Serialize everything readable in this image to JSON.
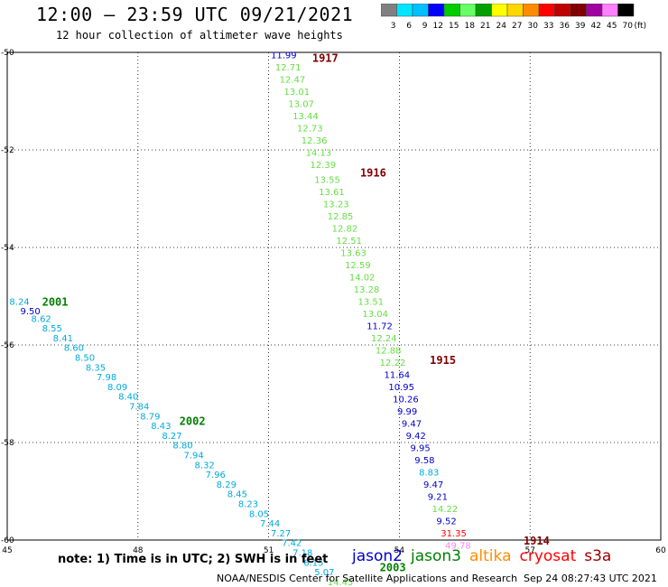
{
  "header": {
    "title": "12:00 – 23:59 UTC 09/21/2021",
    "subtitle": "12 hour collection of altimeter wave heights"
  },
  "color_scale": {
    "labels": [
      "3",
      "6",
      "9",
      "12",
      "15",
      "18",
      "21",
      "24",
      "27",
      "30",
      "33",
      "36",
      "39",
      "42",
      "45",
      "70"
    ],
    "unit": "(ft)",
    "colors": [
      "#808080",
      "#00e5ff",
      "#00bfff",
      "#0000ff",
      "#00cc00",
      "#66ff66",
      "#00a000",
      "#ffff00",
      "#ffd700",
      "#ff8c00",
      "#ff0000",
      "#c00000",
      "#800000",
      "#a000a0",
      "#ff80ff",
      "#000000"
    ]
  },
  "chart_data": {
    "type": "scatter",
    "xlim": [
      45,
      60
    ],
    "ylim": [
      -60,
      -50
    ],
    "x_ticks": [
      "45",
      "48",
      "51",
      "54",
      "57",
      "60"
    ],
    "y_ticks": [
      "-50",
      "-52",
      "-54",
      "-56",
      "-58",
      "-60"
    ],
    "grid": true,
    "series": [
      {
        "name": "jason2",
        "color": "#0000cc"
      },
      {
        "name": "jason3",
        "color": "#008000"
      },
      {
        "name": "altika",
        "color": "#ff8c00"
      },
      {
        "name": "cryosat",
        "color": "#ff0000"
      },
      {
        "name": "s3a",
        "color": "#a00000"
      }
    ],
    "points": [
      {
        "x": 51.05,
        "y": -50.05,
        "value": "11.99",
        "color": "#0000cc"
      },
      {
        "x": 51.15,
        "y": -50.3,
        "value": "12.71",
        "color": "#66dd44"
      },
      {
        "x": 51.25,
        "y": -50.55,
        "value": "12.47",
        "color": "#66dd44"
      },
      {
        "x": 51.35,
        "y": -50.8,
        "value": "13.01",
        "color": "#66dd44"
      },
      {
        "x": 51.45,
        "y": -51.05,
        "value": "13.07",
        "color": "#66dd44"
      },
      {
        "x": 51.55,
        "y": -51.3,
        "value": "13.44",
        "color": "#66dd44"
      },
      {
        "x": 51.65,
        "y": -51.55,
        "value": "12.73",
        "color": "#66dd44"
      },
      {
        "x": 51.75,
        "y": -51.8,
        "value": "12.36",
        "color": "#66dd44"
      },
      {
        "x": 51.85,
        "y": -52.05,
        "value": "14.13",
        "color": "#66dd44"
      },
      {
        "x": 51.95,
        "y": -52.3,
        "value": "12.39",
        "color": "#66dd44"
      },
      {
        "x": 52.05,
        "y": -52.6,
        "value": "13.55",
        "color": "#66dd44"
      },
      {
        "x": 52.15,
        "y": -52.85,
        "value": "13.61",
        "color": "#66dd44"
      },
      {
        "x": 52.25,
        "y": -53.1,
        "value": "13.23",
        "color": "#66dd44"
      },
      {
        "x": 52.35,
        "y": -53.35,
        "value": "12.85",
        "color": "#66dd44"
      },
      {
        "x": 52.45,
        "y": -53.6,
        "value": "12.82",
        "color": "#66dd44"
      },
      {
        "x": 52.55,
        "y": -53.85,
        "value": "12.51",
        "color": "#66dd44"
      },
      {
        "x": 52.65,
        "y": -54.1,
        "value": "13.63",
        "color": "#66dd44"
      },
      {
        "x": 52.75,
        "y": -54.35,
        "value": "12.59",
        "color": "#66dd44"
      },
      {
        "x": 52.85,
        "y": -54.6,
        "value": "14.02",
        "color": "#66dd44"
      },
      {
        "x": 52.95,
        "y": -54.85,
        "value": "13.28",
        "color": "#66dd44"
      },
      {
        "x": 53.05,
        "y": -55.1,
        "value": "13.51",
        "color": "#66dd44"
      },
      {
        "x": 53.15,
        "y": -55.35,
        "value": "13.04",
        "color": "#66dd44"
      },
      {
        "x": 53.25,
        "y": -55.6,
        "value": "11.72",
        "color": "#0000cc"
      },
      {
        "x": 53.35,
        "y": -55.85,
        "value": "12.24",
        "color": "#66dd44"
      },
      {
        "x": 53.45,
        "y": -56.1,
        "value": "12.88",
        "color": "#66dd44"
      },
      {
        "x": 53.55,
        "y": -56.35,
        "value": "12.22",
        "color": "#66dd44"
      },
      {
        "x": 53.65,
        "y": -56.6,
        "value": "11.64",
        "color": "#0000cc"
      },
      {
        "x": 53.75,
        "y": -56.85,
        "value": "10.95",
        "color": "#0000cc"
      },
      {
        "x": 53.85,
        "y": -57.1,
        "value": "10.26",
        "color": "#0000cc"
      },
      {
        "x": 53.95,
        "y": -57.35,
        "value": "9.99",
        "color": "#0000cc"
      },
      {
        "x": 54.05,
        "y": -57.6,
        "value": "9.47",
        "color": "#0000cc"
      },
      {
        "x": 54.15,
        "y": -57.85,
        "value": "9.42",
        "color": "#0000cc"
      },
      {
        "x": 54.25,
        "y": -58.1,
        "value": "9.95",
        "color": "#0000cc"
      },
      {
        "x": 54.35,
        "y": -58.35,
        "value": "9.58",
        "color": "#0000cc"
      },
      {
        "x": 54.45,
        "y": -58.6,
        "value": "8.83",
        "color": "#00aadd"
      },
      {
        "x": 54.55,
        "y": -58.85,
        "value": "9.47",
        "color": "#0000cc"
      },
      {
        "x": 54.65,
        "y": -59.1,
        "value": "9.21",
        "color": "#0000cc"
      },
      {
        "x": 54.75,
        "y": -59.35,
        "value": "14.22",
        "color": "#66dd44"
      },
      {
        "x": 54.85,
        "y": -59.6,
        "value": "9.52",
        "color": "#0000cc"
      },
      {
        "x": 54.95,
        "y": -59.85,
        "value": "31.35",
        "color": "#ff0000"
      },
      {
        "x": 55.05,
        "y": -60.1,
        "value": "49.78",
        "color": "#ff80ff"
      },
      {
        "x": 45.05,
        "y": -55.1,
        "value": "8.24",
        "color": "#00aadd"
      },
      {
        "x": 45.3,
        "y": -55.3,
        "value": "9.50",
        "color": "#0000cc"
      },
      {
        "x": 45.55,
        "y": -55.45,
        "value": "8.62",
        "color": "#00aadd"
      },
      {
        "x": 45.8,
        "y": -55.65,
        "value": "8.55",
        "color": "#00aadd"
      },
      {
        "x": 46.05,
        "y": -55.85,
        "value": "8.41",
        "color": "#00aadd"
      },
      {
        "x": 46.3,
        "y": -56.05,
        "value": "8.60",
        "color": "#00aadd"
      },
      {
        "x": 46.55,
        "y": -56.25,
        "value": "8.50",
        "color": "#00aadd"
      },
      {
        "x": 46.8,
        "y": -56.45,
        "value": "8.35",
        "color": "#00aadd"
      },
      {
        "x": 47.05,
        "y": -56.65,
        "value": "7.98",
        "color": "#00aadd"
      },
      {
        "x": 47.3,
        "y": -56.85,
        "value": "8.09",
        "color": "#00aadd"
      },
      {
        "x": 47.55,
        "y": -57.05,
        "value": "8.40",
        "color": "#00aadd"
      },
      {
        "x": 47.8,
        "y": -57.25,
        "value": "7.84",
        "color": "#00aadd"
      },
      {
        "x": 48.05,
        "y": -57.45,
        "value": "8.79",
        "color": "#00aadd"
      },
      {
        "x": 48.3,
        "y": -57.65,
        "value": "8.43",
        "color": "#00aadd"
      },
      {
        "x": 48.55,
        "y": -57.85,
        "value": "8.27",
        "color": "#00aadd"
      },
      {
        "x": 48.8,
        "y": -58.05,
        "value": "8.80",
        "color": "#00aadd"
      },
      {
        "x": 49.05,
        "y": -58.25,
        "value": "7.94",
        "color": "#00aadd"
      },
      {
        "x": 49.3,
        "y": -58.45,
        "value": "8.32",
        "color": "#00aadd"
      },
      {
        "x": 49.55,
        "y": -58.65,
        "value": "7.96",
        "color": "#00aadd"
      },
      {
        "x": 49.8,
        "y": -58.85,
        "value": "8.29",
        "color": "#00aadd"
      },
      {
        "x": 50.05,
        "y": -59.05,
        "value": "8.45",
        "color": "#00aadd"
      },
      {
        "x": 50.3,
        "y": -59.25,
        "value": "8.23",
        "color": "#00aadd"
      },
      {
        "x": 50.55,
        "y": -59.45,
        "value": "8.05",
        "color": "#00aadd"
      },
      {
        "x": 50.8,
        "y": -59.65,
        "value": "7.44",
        "color": "#00aadd"
      },
      {
        "x": 51.05,
        "y": -59.85,
        "value": "7.27",
        "color": "#00aadd"
      },
      {
        "x": 51.3,
        "y": -60.05,
        "value": "7.42",
        "color": "#00aadd"
      },
      {
        "x": 51.55,
        "y": -60.25,
        "value": "7.18",
        "color": "#00aadd"
      },
      {
        "x": 51.8,
        "y": -60.45,
        "value": "6.15",
        "color": "#00aadd"
      },
      {
        "x": 52.05,
        "y": -60.65,
        "value": "5.07",
        "color": "#00aadd"
      },
      {
        "x": 52.35,
        "y": -60.85,
        "value": "14.45",
        "color": "#66dd44"
      }
    ],
    "annotations": [
      {
        "x": 52.0,
        "y": -50.1,
        "text": "1917",
        "color": "#800000"
      },
      {
        "x": 53.1,
        "y": -52.45,
        "text": "1916",
        "color": "#800000"
      },
      {
        "x": 54.7,
        "y": -56.3,
        "text": "1915",
        "color": "#800000"
      },
      {
        "x": 56.85,
        "y": -60.0,
        "text": "1914",
        "color": "#800000"
      },
      {
        "x": 45.8,
        "y": -55.1,
        "text": "2001",
        "color": "#008000"
      },
      {
        "x": 48.95,
        "y": -57.55,
        "text": "2002",
        "color": "#008000"
      },
      {
        "x": 53.55,
        "y": -60.55,
        "text": "2003",
        "color": "#008000"
      }
    ]
  },
  "legend": {
    "note": "note: 1) Time is in UTC; 2) SWH is in feet",
    "satellites": [
      {
        "name": "jason2",
        "color": "#0000cc"
      },
      {
        "name": "jason3",
        "color": "#008000"
      },
      {
        "name": "altika",
        "color": "#ff8c00"
      },
      {
        "name": "cryosat",
        "color": "#ff0000"
      },
      {
        "name": "s3a",
        "color": "#a00000"
      }
    ]
  },
  "footer": {
    "credit": "NOAA/NESDIS Center for Satellite Applications and Research",
    "timestamp": "Sep 24 08:27:43 UTC 2021"
  }
}
